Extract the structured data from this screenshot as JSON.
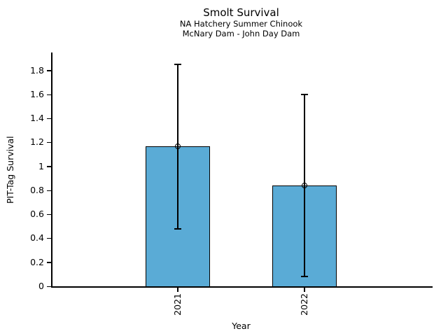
{
  "chart_data": {
    "type": "bar",
    "title": "Smolt Survival",
    "subtitle_line1": "NA Hatchery Summer Chinook",
    "subtitle_line2": "McNary Dam - John Day Dam",
    "xlabel": "Year",
    "ylabel": "PIT-Tag Survival",
    "categories": [
      "2021",
      "2022"
    ],
    "values": [
      1.17,
      0.84
    ],
    "error_low": [
      0.48,
      0.08
    ],
    "error_high": [
      1.85,
      1.6
    ],
    "ytick_values": [
      0,
      0.2,
      0.4,
      0.6,
      0.8,
      1,
      1.2,
      1.4,
      1.6,
      1.8
    ],
    "ytick_labels": [
      "0",
      "0.2",
      "0.4",
      "0.6",
      "0.8",
      "1",
      "1.2",
      "1.4",
      "1.6",
      "1.8"
    ],
    "ylim": [
      0,
      1.95
    ],
    "grid": false,
    "legend": null,
    "marker": "open-circle",
    "bar_color": "#5AABD6",
    "edge_color": "#000000",
    "text_color": "#000000",
    "background_color": "#ffffff"
  }
}
